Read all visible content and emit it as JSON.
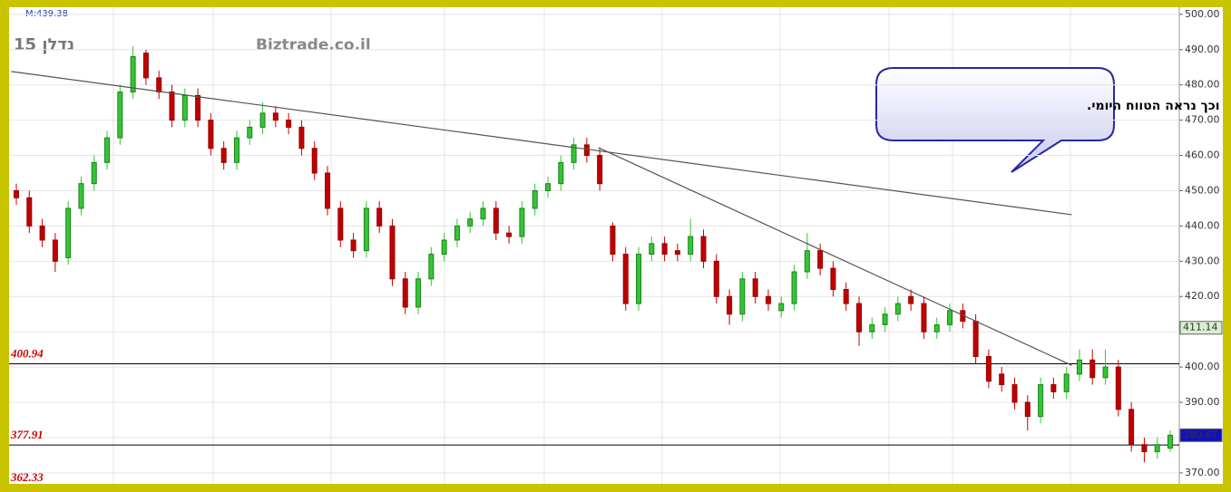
{
  "chart_data": {
    "type": "candlestick",
    "title": "נדלן 15",
    "watermark": "Biztrade.co.il",
    "info": "M:439.38",
    "annotation": "וכך נראה הטווח היומי.",
    "open": [
      450,
      448,
      440,
      436,
      431,
      445,
      452,
      458,
      465,
      478,
      489,
      482,
      478,
      470,
      477,
      470,
      462,
      458,
      465,
      468,
      472,
      470,
      468,
      462,
      455,
      445,
      436,
      433,
      445,
      440,
      425,
      417,
      425,
      432,
      436,
      440,
      442,
      445,
      438,
      437,
      445,
      450,
      452,
      458,
      463,
      460,
      440,
      432,
      418,
      432,
      435,
      433,
      432,
      437,
      430,
      420,
      415,
      425,
      420,
      416,
      418,
      427,
      433,
      428,
      422,
      418,
      410,
      412,
      415,
      420,
      418,
      410,
      412,
      416,
      413,
      403,
      398,
      395,
      390,
      386,
      395,
      393,
      398,
      402,
      397,
      400,
      388,
      378,
      376,
      377
    ],
    "high": [
      452,
      450,
      442,
      438,
      447,
      454,
      460,
      467,
      480,
      491,
      490,
      484,
      480,
      479,
      479,
      472,
      464,
      467,
      470,
      475,
      474,
      472,
      470,
      464,
      457,
      447,
      438,
      447,
      447,
      442,
      427,
      427,
      434,
      438,
      442,
      444,
      447,
      447,
      440,
      447,
      452,
      454,
      460,
      465,
      465,
      462,
      441,
      434,
      434,
      437,
      437,
      435,
      442,
      439,
      432,
      422,
      427,
      427,
      422,
      420,
      429,
      438,
      435,
      430,
      424,
      420,
      414,
      417,
      420,
      422,
      420,
      414,
      418,
      418,
      415,
      405,
      400,
      397,
      392,
      397,
      397,
      400,
      405,
      405,
      405,
      402,
      390,
      380,
      380,
      382
    ],
    "low": [
      446,
      438,
      434,
      427,
      429,
      443,
      450,
      456,
      463,
      476,
      480,
      476,
      468,
      468,
      468,
      460,
      456,
      456,
      463,
      466,
      468,
      466,
      460,
      453,
      443,
      434,
      431,
      431,
      438,
      423,
      415,
      415,
      423,
      430,
      434,
      438,
      440,
      436,
      435,
      435,
      443,
      448,
      450,
      456,
      458,
      450,
      430,
      416,
      416,
      430,
      430,
      430,
      430,
      428,
      418,
      412,
      413,
      418,
      416,
      414,
      416,
      425,
      426,
      420,
      416,
      406,
      408,
      410,
      413,
      416,
      408,
      408,
      410,
      411,
      401,
      394,
      393,
      388,
      382,
      384,
      391,
      391,
      396,
      395,
      395,
      386,
      376,
      373,
      374,
      376
    ],
    "close": [
      448,
      440,
      436,
      430,
      445,
      452,
      458,
      465,
      478,
      488,
      482,
      478,
      470,
      477,
      470,
      462,
      458,
      465,
      468,
      472,
      470,
      468,
      462,
      455,
      445,
      436,
      433,
      445,
      440,
      425,
      417,
      425,
      432,
      436,
      440,
      442,
      445,
      438,
      437,
      445,
      450,
      452,
      458,
      463,
      460,
      452,
      432,
      418,
      432,
      435,
      432,
      432,
      437,
      430,
      420,
      415,
      425,
      420,
      418,
      418,
      427,
      433,
      428,
      422,
      418,
      410,
      412,
      415,
      418,
      418,
      410,
      412,
      416,
      413,
      403,
      396,
      395,
      390,
      386,
      395,
      393,
      398,
      402,
      397,
      400,
      388,
      378,
      376,
      378,
      380.67
    ],
    "up_color": "#33c633",
    "down_color": "#c00000",
    "ylim": [
      367.4,
      501.5
    ],
    "yticks": [
      {
        "value": 370,
        "label": "370.00"
      },
      {
        "value": 380,
        "label": "380.00"
      },
      {
        "value": 390,
        "label": "390.00"
      },
      {
        "value": 400,
        "label": "400.00"
      },
      {
        "value": 410,
        "label": "410.00"
      },
      {
        "value": 420,
        "label": "420.00"
      },
      {
        "value": 430,
        "label": "430.00"
      },
      {
        "value": 440,
        "label": "440.00"
      },
      {
        "value": 450,
        "label": "450.00"
      },
      {
        "value": 460,
        "label": "460.00"
      },
      {
        "value": 470,
        "label": "470.00"
      },
      {
        "value": 480,
        "label": "480.00"
      },
      {
        "value": 490,
        "label": "490.00"
      },
      {
        "value": 500,
        "label": "500.00"
      }
    ],
    "levels": [
      {
        "value": 400.94,
        "label": "400.94"
      },
      {
        "value": 377.91,
        "label": "377.91"
      }
    ],
    "bottom_label": "362.33",
    "trend_lines": [
      {
        "x": [
          -0.4,
          81.4
        ],
        "y": [
          483.8,
          443.2
        ]
      },
      {
        "x": [
          44.9,
          81.4
        ],
        "y": [
          462.2,
          400.5
        ]
      }
    ],
    "price_tags": [
      {
        "value": 411.14,
        "label": "411.14",
        "color": "#d8f0d0"
      },
      {
        "value": 380.67,
        "label": "380.67",
        "color": "#1010c0"
      }
    ],
    "grid": true
  }
}
